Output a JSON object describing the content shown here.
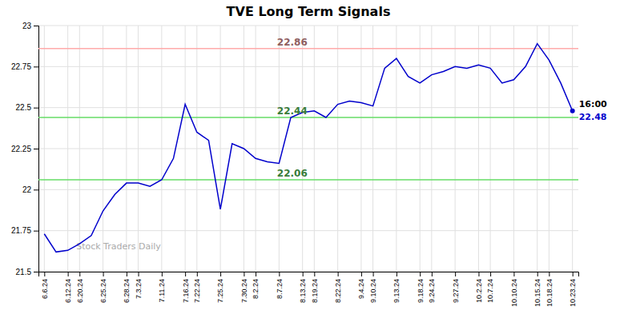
{
  "chart_data": {
    "type": "line",
    "title": "TVE Long Term Signals",
    "categories": [
      "6.6.24",
      null,
      "6.12.24",
      "6.20.24",
      null,
      "6.25.24",
      null,
      "6.28.24",
      "7.3.24",
      null,
      "7.11.24",
      null,
      "7.16.24",
      "7.22.24",
      null,
      "7.25.24",
      null,
      "7.30.24",
      "8.2.24",
      null,
      "8.7.24",
      null,
      "8.13.24",
      "8.19.24",
      null,
      "8.22.24",
      null,
      "9.4.24",
      "9.10.24",
      null,
      "9.13.24",
      null,
      "9.18.24",
      "9.24.24",
      null,
      "9.27.24",
      null,
      "10.2.24",
      "10.7.24",
      null,
      "10.10.24",
      null,
      "10.15.24",
      "10.18.24",
      null,
      "10.23.24"
    ],
    "values": [
      21.73,
      21.62,
      21.63,
      21.67,
      21.72,
      21.87,
      21.97,
      22.04,
      22.04,
      22.02,
      22.06,
      22.19,
      22.52,
      22.35,
      22.3,
      21.88,
      22.28,
      22.25,
      22.19,
      22.17,
      22.16,
      22.44,
      22.47,
      22.48,
      22.44,
      22.52,
      22.54,
      22.53,
      22.51,
      22.74,
      22.8,
      22.69,
      22.65,
      22.7,
      22.72,
      22.75,
      22.74,
      22.76,
      22.74,
      22.65,
      22.67,
      22.75,
      22.89,
      22.79,
      22.65,
      22.48
    ],
    "color": "#0000cc",
    "ylim": [
      21.5,
      23.0
    ],
    "yticks": [
      21.5,
      21.75,
      22,
      22.25,
      22.5,
      22.75,
      23
    ],
    "grid": true,
    "reference_lines": [
      {
        "value": 22.86,
        "color": "#ffaaaa",
        "label": "22.86"
      },
      {
        "value": 22.44,
        "color": "#66dd66",
        "label": "22.44"
      },
      {
        "value": 22.06,
        "color": "#66dd66",
        "label": "22.06"
      }
    ],
    "last_point_label": "16:00",
    "watermark": "Stock Traders Daily"
  }
}
